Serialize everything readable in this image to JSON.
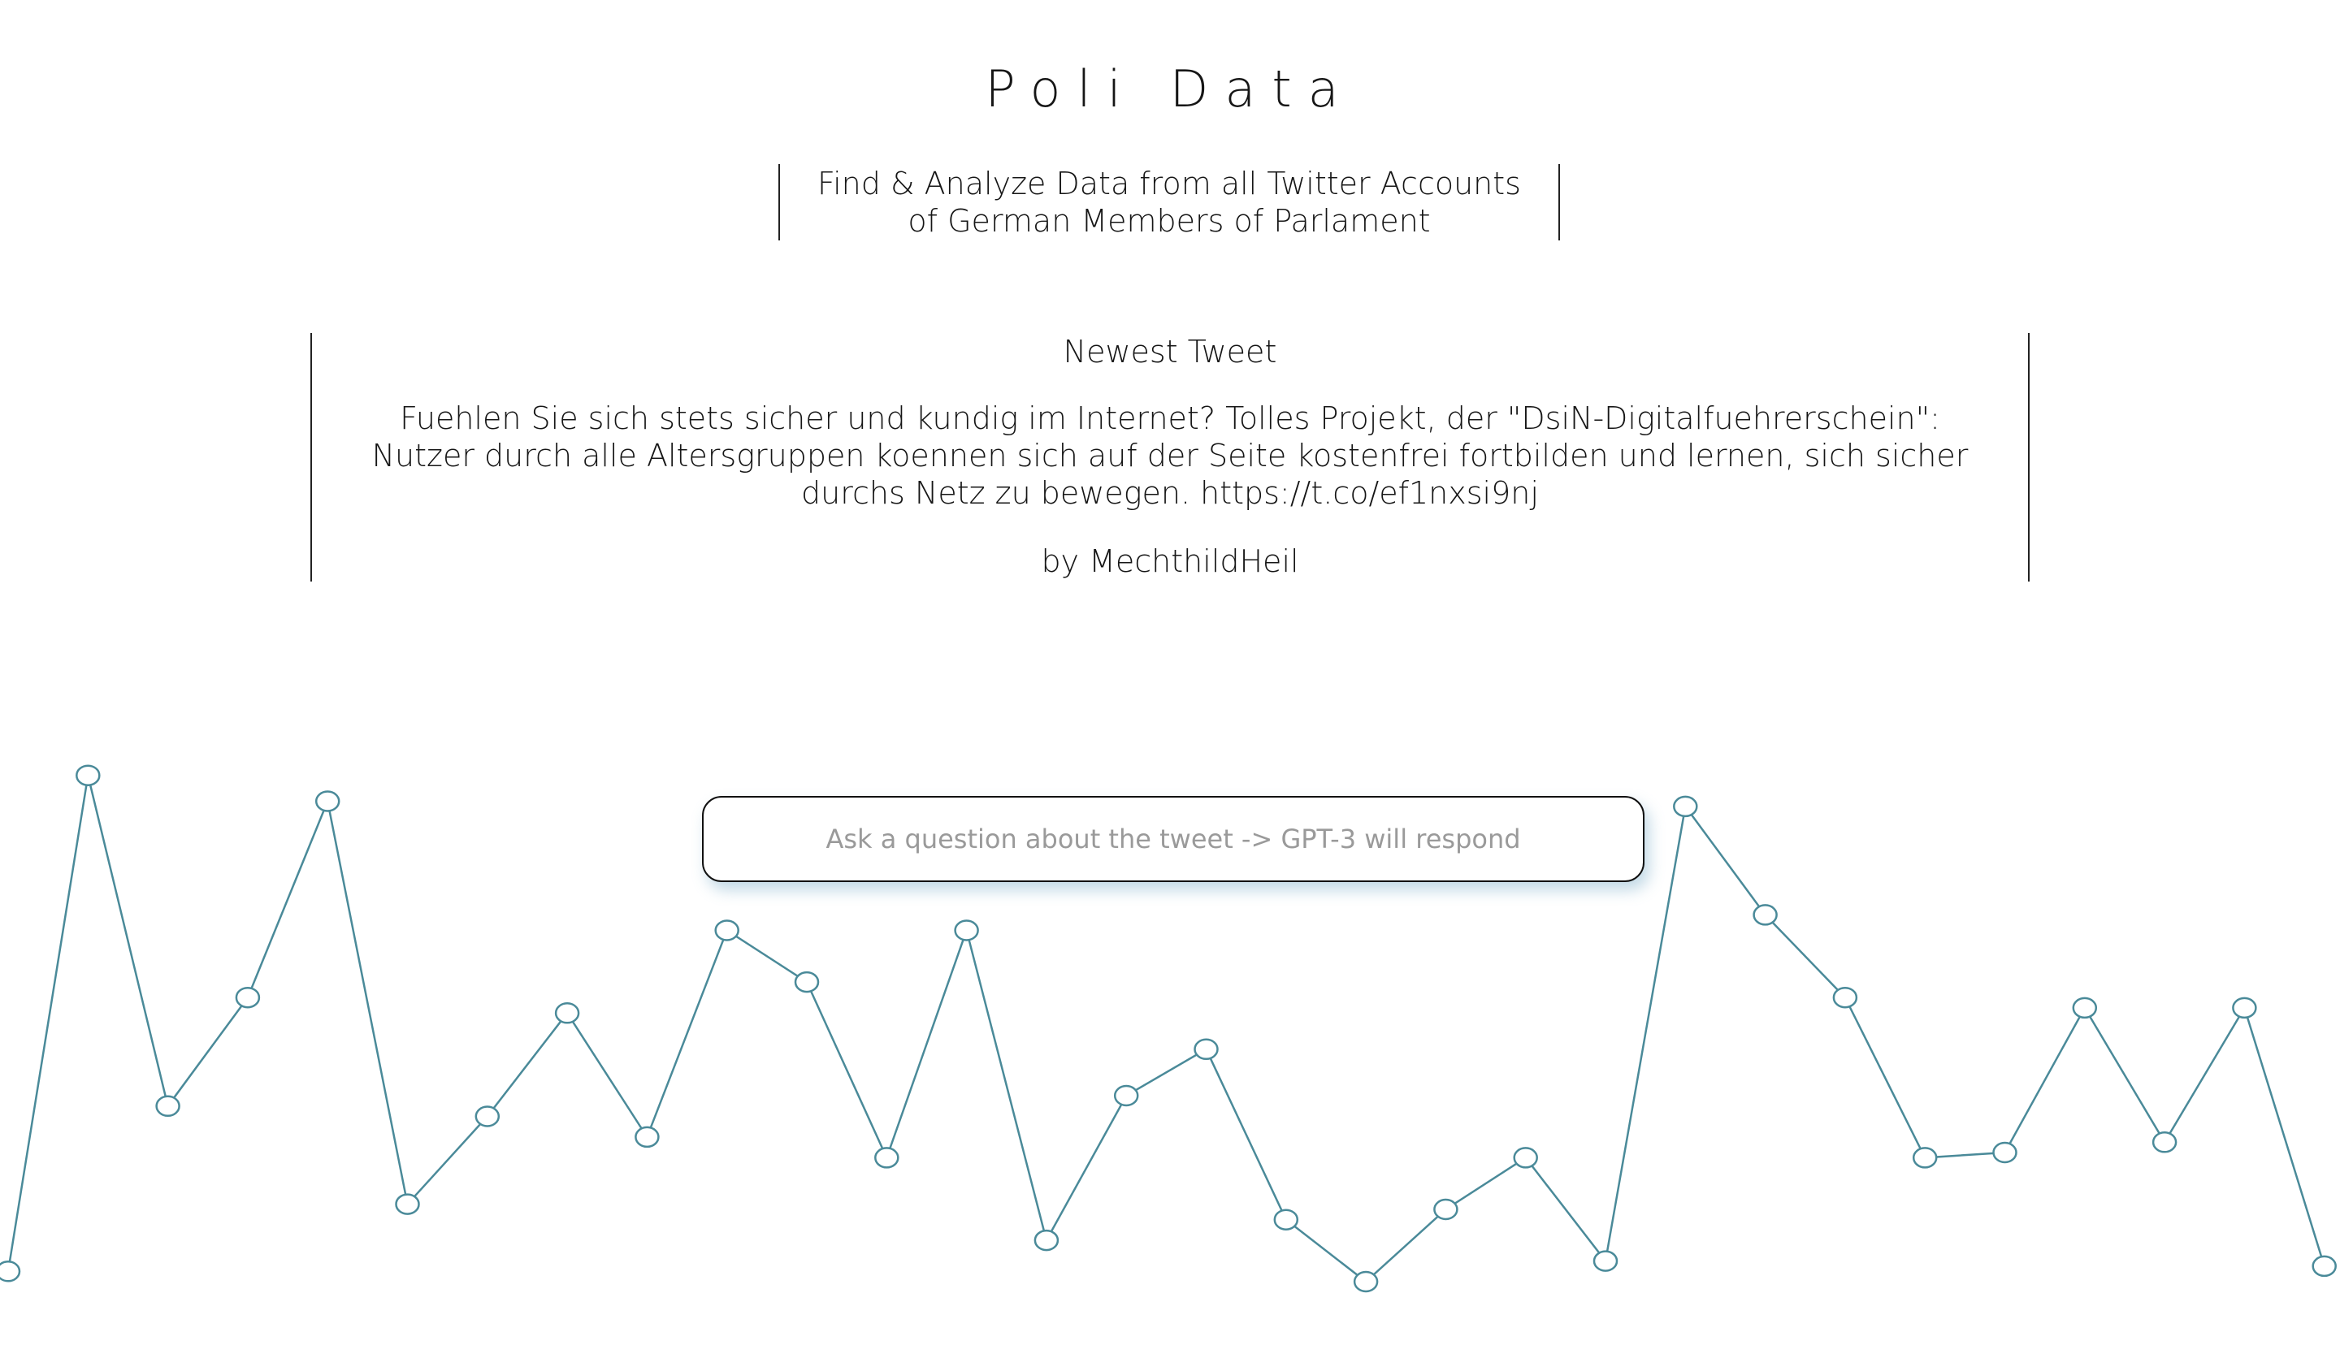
{
  "header": {
    "title": "Poli Data",
    "tagline": "Find & Analyze Data from all Twitter Accounts of German Members of Parlament"
  },
  "tweet": {
    "heading": "Newest Tweet",
    "text": "Fuehlen Sie sich stets sicher und kundig im Internet? Tolles Projekt, der \"DsiN-Digitalfuehrerschein\": Nutzer durch alle Altersgruppen koennen sich auf der Seite kostenfrei fortbilden und lernen, sich sicher durchs Netz zu bewegen. https://t.co/ef1nxsi9nj",
    "author": "by MechthildHeil"
  },
  "ask": {
    "placeholder": "Ask a question about the tweet -> GPT-3 will respond",
    "value": ""
  },
  "chart_data": {
    "type": "line",
    "x": [
      0,
      1,
      2,
      3,
      4,
      5,
      6,
      7,
      8,
      9,
      10,
      11,
      12,
      13,
      14,
      15,
      16,
      17,
      18,
      19,
      20,
      21,
      22,
      23,
      24,
      25,
      26,
      27,
      28,
      29
    ],
    "values": [
      0.02,
      0.98,
      0.34,
      0.55,
      0.93,
      0.15,
      0.32,
      0.52,
      0.28,
      0.68,
      0.58,
      0.24,
      0.68,
      0.08,
      0.36,
      0.45,
      0.12,
      0.0,
      0.14,
      0.24,
      0.04,
      0.92,
      0.71,
      0.55,
      0.24,
      0.25,
      0.53,
      0.27,
      0.53,
      0.03
    ],
    "ylim": [
      0,
      1
    ],
    "grid": false,
    "colors": {
      "line": "#4a8a99",
      "marker_fill": "#ffffff"
    }
  }
}
